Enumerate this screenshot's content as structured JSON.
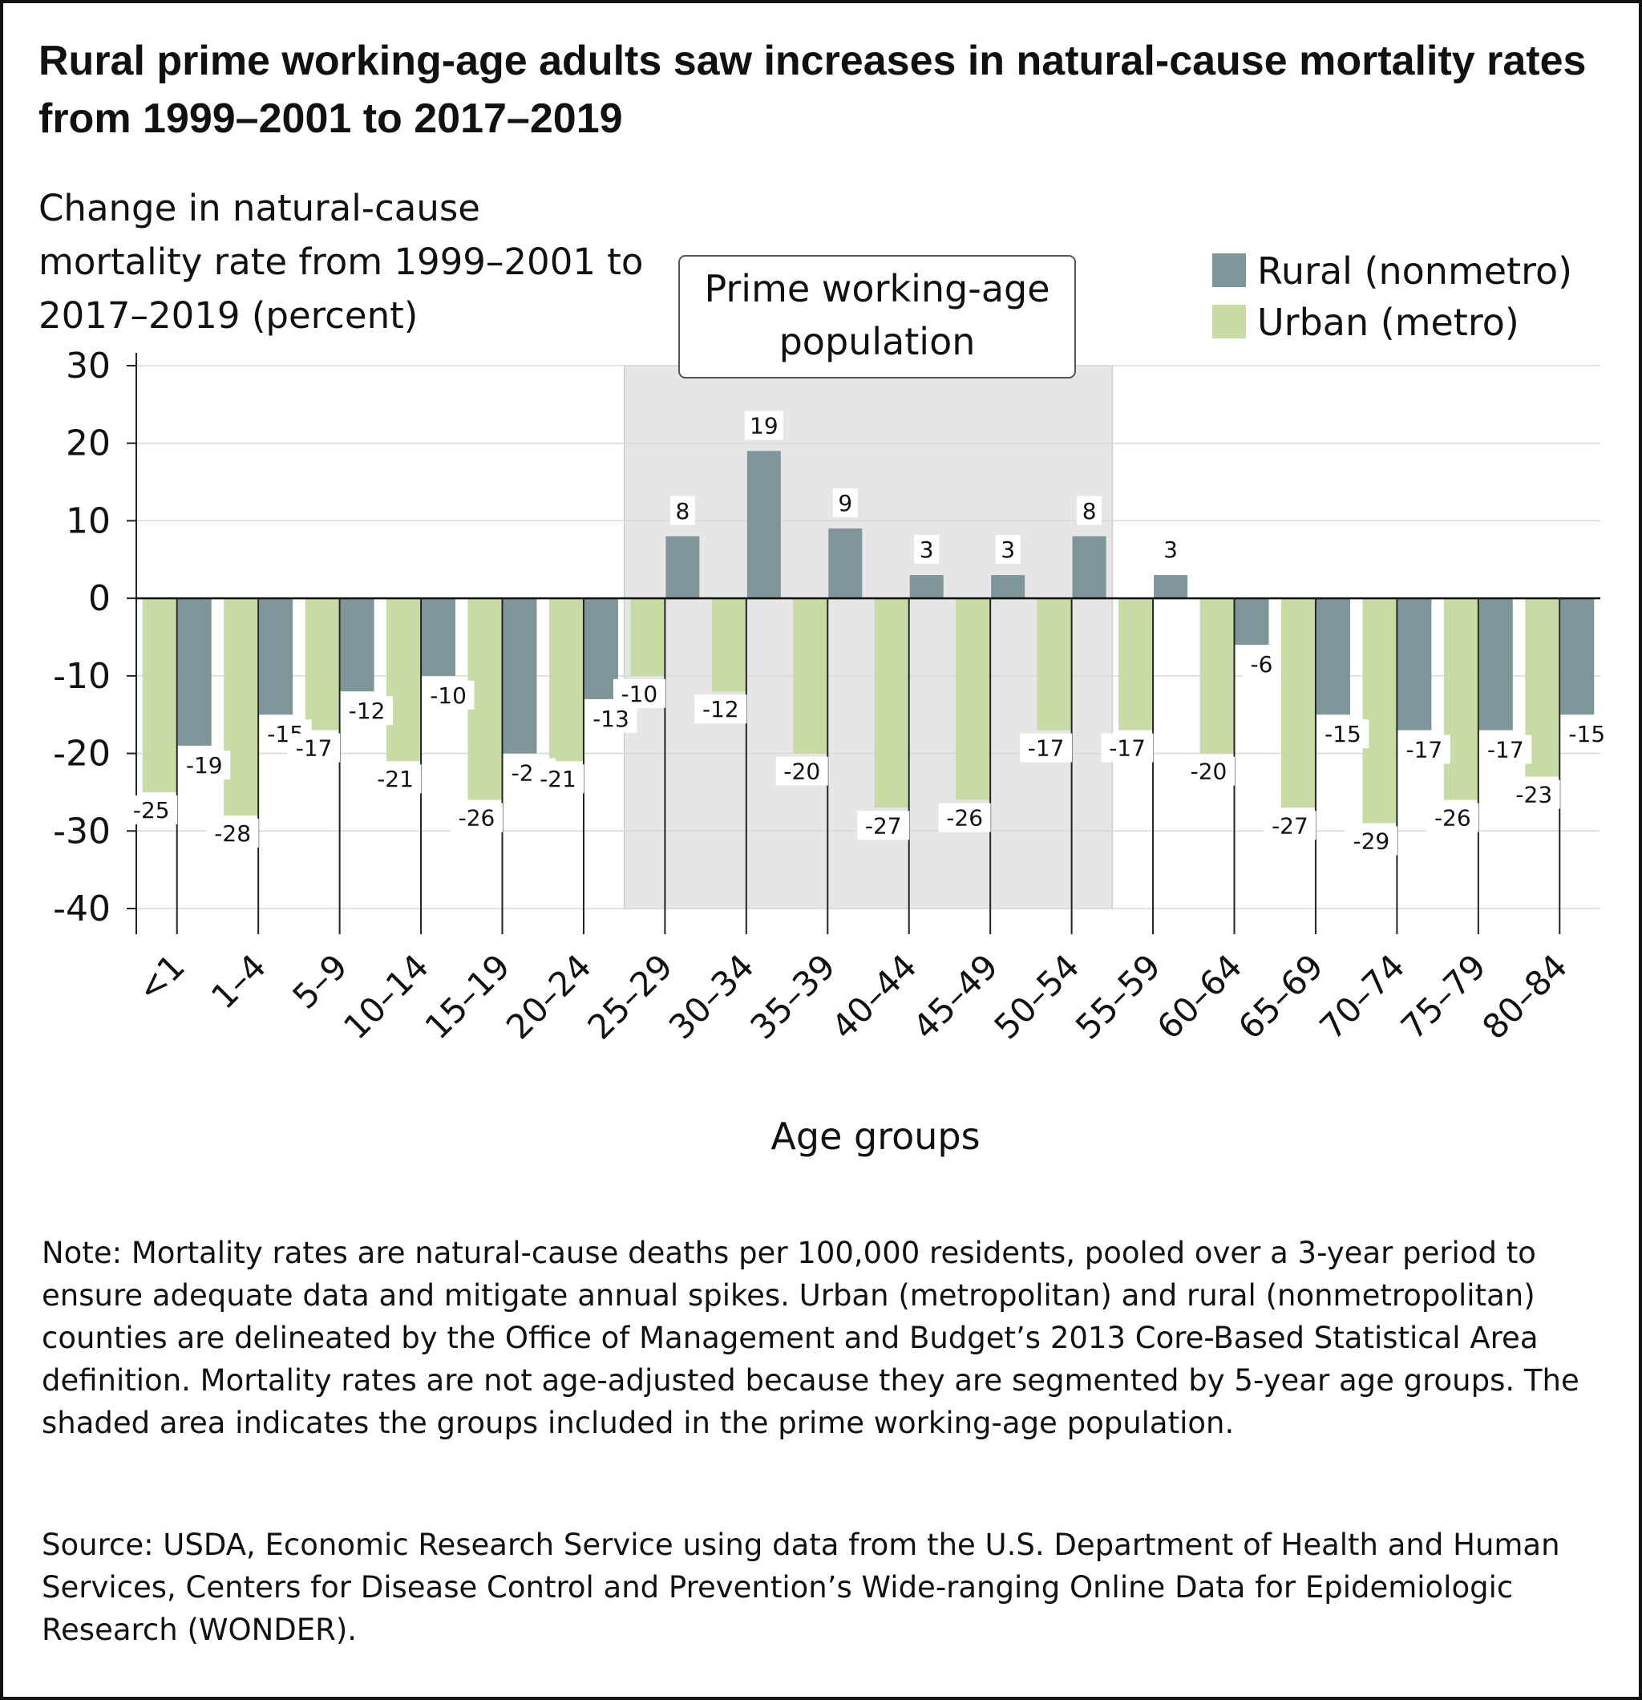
{
  "title": "Rural prime working-age adults saw increases in natural-cause mortality rates from 1999–2001 to 2017–2019",
  "note": "Note: Mortality rates are natural-cause deaths per 100,000 residents, pooled over a 3-year period to ensure adequate data and mitigate annual spikes. Urban (metropolitan) and rural (nonmetropolitan) counties are delineated by the Office of Management and Budget’s 2013 Core-Based Statistical Area definition. Mortality rates are not age-adjusted because they are segmented by 5-year age groups. The shaded area indicates the groups included in the prime working-age population.",
  "source": "Source: USDA, Economic Research Service using data from the U.S. Department of Health and Human Services, Centers for Disease Control and Prevention’s Wide-ranging Online Data for Epidemiologic Research (WONDER).",
  "chart_data": {
    "type": "bar",
    "ylabel": "Change in natural-cause mortality rate from 1999–2001 to 2017–2019 (percent)",
    "xlabel": "Age groups",
    "ylim": [
      -40,
      30
    ],
    "yticks": [
      30,
      20,
      10,
      0,
      -10,
      -20,
      -30,
      -40
    ],
    "grid": true,
    "legend_position": "top-right",
    "categories": [
      "<1",
      "1–4",
      "5–9",
      "10–14",
      "15–19",
      "20–24",
      "25–29",
      "30–34",
      "35–39",
      "40–44",
      "45–49",
      "50–54",
      "55–59",
      "60–64",
      "65–69",
      "70–74",
      "75–79",
      "80–84"
    ],
    "series": [
      {
        "name": "Urban (metro)",
        "color": "#c8dba4",
        "values": [
          -25,
          -28,
          -17,
          -21,
          -26,
          -21,
          -10,
          -12,
          -20,
          -27,
          -26,
          -17,
          -17,
          -20,
          -27,
          -29,
          -26,
          -23
        ]
      },
      {
        "name": "Rural (nonmetro)",
        "color": "#7e9599",
        "values": [
          -19,
          -15,
          -12,
          -10,
          -20,
          -13,
          8,
          19,
          9,
          3,
          3,
          8,
          3,
          -6,
          -15,
          -17,
          -17,
          -15
        ]
      }
    ],
    "highlight": {
      "label": "Prime working-age population",
      "categories": [
        "25–29",
        "30–34",
        "35–39",
        "40–44",
        "45–49",
        "50–54"
      ],
      "color": "#e6e6e6"
    }
  }
}
